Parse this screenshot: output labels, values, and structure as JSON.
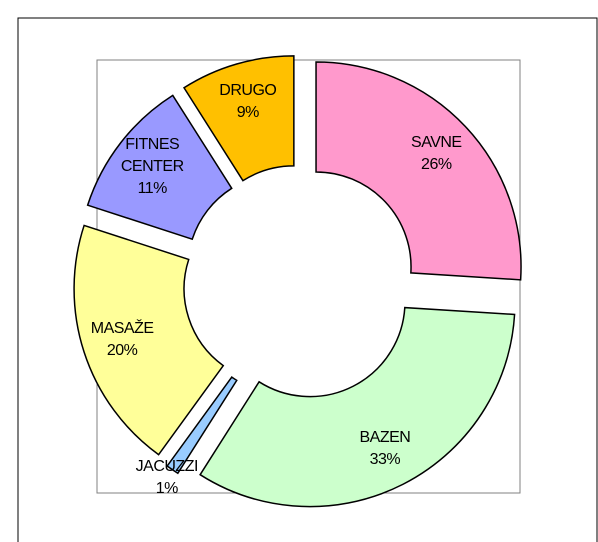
{
  "chart_data": {
    "type": "donut",
    "categories": [
      "SAVNE",
      "BAZEN",
      "JACUZZI",
      "MASAŽE",
      "FITNES CENTER",
      "DRUGO"
    ],
    "values": [
      26,
      33,
      1,
      20,
      11,
      9
    ],
    "value_labels": [
      "26%",
      "33%",
      "1%",
      "20%",
      "11%",
      "9%"
    ],
    "colors": [
      "#ff99cc",
      "#ccffcc",
      "#99ccff",
      "#ffff99",
      "#9999ff",
      "#ffc000"
    ]
  }
}
